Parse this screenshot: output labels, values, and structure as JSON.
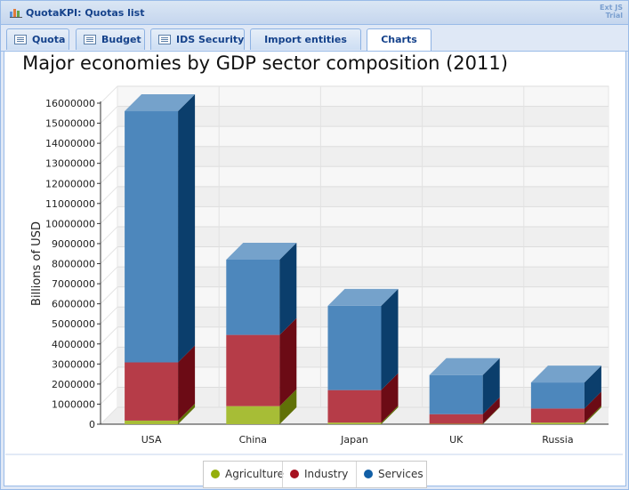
{
  "window": {
    "title": "QuotaKPI: Quotas list",
    "badge_line1": "Ext JS",
    "badge_line2": "Trial"
  },
  "tabs": [
    {
      "label": "Quota",
      "icon": "grid-icon"
    },
    {
      "label": "Budget",
      "icon": "grid-icon"
    },
    {
      "label": "IDS Security",
      "icon": "grid-icon"
    },
    {
      "label": "Import entities",
      "icon": ""
    },
    {
      "label": "Charts",
      "icon": ""
    }
  ],
  "active_tab": "Charts",
  "colors": {
    "agriculture": "#94ae0a",
    "industry": "#a61120",
    "services": "#115fa6"
  },
  "chart_data": {
    "type": "bar",
    "stacked": true,
    "style": "3d",
    "title": "Major economies by GDP sector composition (2011)",
    "xlabel": "",
    "ylabel": "Billions of USD",
    "ylim": [
      0,
      16000000
    ],
    "ytick_step": 1000000,
    "grid": true,
    "legend_position": "bottom",
    "categories": [
      "USA",
      "China",
      "Japan",
      "UK",
      "Russia"
    ],
    "series": [
      {
        "name": "Agriculture",
        "color": "#94ae0a",
        "values": [
          180000,
          900000,
          80000,
          20000,
          80000
        ]
      },
      {
        "name": "Industry",
        "color": "#a61120",
        "values": [
          2900000,
          3550000,
          1620000,
          480000,
          700000
        ]
      },
      {
        "name": "Services",
        "color": "#115fa6",
        "values": [
          12520000,
          3750000,
          4200000,
          1950000,
          1300000
        ]
      }
    ]
  }
}
